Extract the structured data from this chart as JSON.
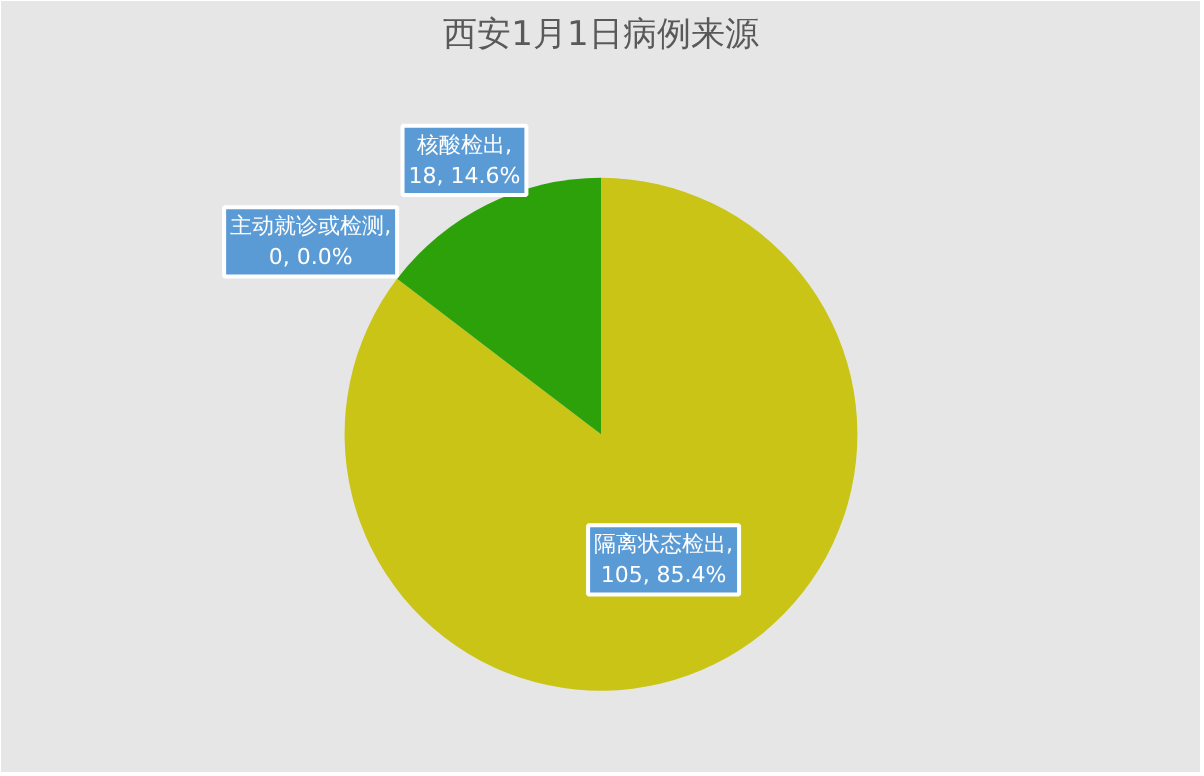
{
  "chart_data": {
    "type": "pie",
    "title": "西安1月1日病例来源",
    "categories": [
      "隔离状态检出",
      "核酸检出",
      "主动就诊或检测"
    ],
    "values": [
      105,
      18,
      0
    ],
    "colors": [
      "#c9c416",
      "#2ca10a",
      "#5b9bd5"
    ],
    "value_labels": [
      ", 105, 85.4%",
      ", 18, 14.6%",
      ", 0, 0.0%"
    ]
  }
}
